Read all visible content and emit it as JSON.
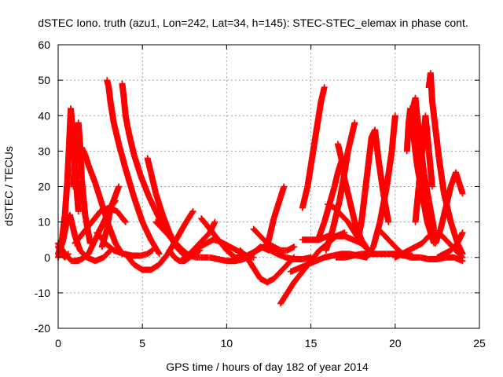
{
  "chart_data": {
    "type": "scatter",
    "title": "dSTEC Iono. truth (azu1, Lon=242, Lat=34, h=145): STEC-STEC_elemax in phase cont.",
    "xlabel": "GPS time / hours of day 182 of year 2014",
    "ylabel": "dSTEC  / TECUs",
    "xlim": [
      0,
      25
    ],
    "ylim": [
      -20,
      60
    ],
    "xticks": [
      0,
      5,
      10,
      15,
      20,
      25
    ],
    "yticks": [
      -20,
      -10,
      0,
      10,
      20,
      30,
      40,
      50,
      60
    ],
    "grid": true,
    "marker": "plus",
    "color": "#ff0000",
    "series": [
      {
        "x": [
          0.0,
          0.2,
          0.4,
          0.55,
          0.65,
          0.75,
          0.85,
          1.0,
          1.2
        ],
        "y": [
          1,
          4,
          12,
          22,
          32,
          42,
          36,
          25,
          13
        ]
      },
      {
        "x": [
          0.9,
          1.0,
          1.1,
          1.2,
          1.3,
          1.4,
          1.6,
          1.9
        ],
        "y": [
          20,
          28,
          34,
          38,
          32,
          22,
          12,
          4
        ]
      },
      {
        "x": [
          0.0,
          0.3,
          0.5,
          0.7,
          0.8,
          1.0,
          1.3,
          1.7,
          2.2,
          2.7,
          3.1
        ],
        "y": [
          0,
          5,
          10,
          12,
          10,
          6,
          2,
          0,
          -1,
          0,
          2
        ]
      },
      {
        "x": [
          1.0,
          1.4,
          1.8,
          2.3,
          2.8,
          3.2,
          3.6
        ],
        "y": [
          -1,
          -0.5,
          1,
          6,
          11,
          15,
          20
        ]
      },
      {
        "x": [
          1.4,
          1.6,
          1.8,
          2.2,
          2.6,
          3.0,
          3.4,
          3.8
        ],
        "y": [
          31,
          29,
          26,
          21,
          15,
          9,
          4,
          1
        ]
      },
      {
        "x": [
          0.0,
          0.2,
          0.4,
          0.6
        ],
        "y": [
          3,
          1,
          0,
          1
        ]
      },
      {
        "x": [
          0.0,
          0.4,
          0.8,
          1.2,
          1.5
        ],
        "y": [
          4,
          1,
          -1,
          -1,
          0
        ]
      },
      {
        "x": [
          2.9,
          3.0,
          3.1,
          3.3,
          3.6,
          4.0,
          4.5,
          5.0,
          5.5,
          6.0
        ],
        "y": [
          50,
          48,
          44,
          38,
          32,
          25,
          17,
          10,
          5,
          1
        ]
      },
      {
        "x": [
          3.8,
          3.9,
          4.0,
          4.2,
          4.5,
          4.9,
          5.4,
          6.0,
          6.6,
          7.2,
          7.6
        ],
        "y": [
          49,
          45,
          40,
          35,
          29,
          23,
          17,
          11,
          6,
          2,
          0
        ]
      },
      {
        "x": [
          2.3,
          2.8,
          3.3,
          3.9,
          4.4,
          4.9,
          5.3,
          5.6
        ],
        "y": [
          7,
          4,
          2,
          1,
          0.5,
          0.5,
          1,
          2
        ]
      },
      {
        "x": [
          2.6,
          2.9,
          3.1,
          3.4
        ],
        "y": [
          3,
          8,
          14,
          16
        ]
      },
      {
        "x": [
          1.0,
          1.5,
          2.0,
          2.5,
          3.0,
          3.5,
          4.0
        ],
        "y": [
          4,
          7,
          10,
          13,
          14,
          13,
          10
        ]
      },
      {
        "x": [
          4.0,
          4.5,
          5.0,
          5.5,
          6.0,
          6.5,
          7.0,
          7.6,
          8.0
        ],
        "y": [
          1,
          -2,
          -3.5,
          -3.5,
          -2,
          1,
          5,
          10,
          13
        ]
      },
      {
        "x": [
          5.3,
          5.5,
          5.8,
          6.2,
          6.6,
          7.0,
          7.4,
          7.7,
          8.0
        ],
        "y": [
          28,
          24,
          18,
          12,
          7,
          3,
          1,
          0,
          1
        ]
      },
      {
        "x": [
          5.8,
          6.2,
          6.6,
          7.0,
          7.4,
          7.8,
          8.2,
          8.6,
          8.9
        ],
        "y": [
          10,
          8,
          6,
          4,
          2,
          0.5,
          0,
          0,
          0
        ]
      },
      {
        "x": [
          7.5,
          7.8,
          8.2,
          8.6,
          9.0,
          9.3
        ],
        "y": [
          0,
          1,
          3,
          5,
          7,
          10
        ]
      },
      {
        "x": [
          8.0,
          8.4,
          8.8,
          9.2,
          9.6,
          10.0,
          10.4,
          10.8,
          11.2,
          11.6
        ],
        "y": [
          2,
          3,
          4,
          5,
          4.5,
          3.5,
          2.5,
          1.5,
          0.5,
          0
        ]
      },
      {
        "x": [
          6.6,
          6.9,
          7.2,
          7.5,
          7.8,
          8.1,
          8.4
        ],
        "y": [
          2,
          0,
          -1,
          -1,
          0,
          1,
          2
        ]
      },
      {
        "x": [
          9.0,
          9.5,
          10.0,
          10.5,
          11.0,
          11.4,
          11.8
        ],
        "y": [
          0,
          -0.5,
          -1,
          -1,
          -0.5,
          0.5,
          2
        ]
      },
      {
        "x": [
          8.5,
          9.0,
          9.5,
          10.0,
          10.5,
          11.0,
          11.5,
          12.0,
          12.5
        ],
        "y": [
          11,
          8,
          5,
          2,
          0,
          0,
          1,
          3,
          2
        ]
      },
      {
        "x": [
          10.5,
          11.0,
          11.4,
          11.8,
          12.2,
          12.6,
          13.0,
          13.5,
          14.0,
          14.5,
          15.0
        ],
        "y": [
          -1,
          0,
          1,
          2,
          3,
          2,
          1,
          0,
          -0.5,
          -0.5,
          0
        ]
      },
      {
        "x": [
          11.6,
          12.0,
          12.4,
          12.8,
          13.2,
          13.6,
          14.0
        ],
        "y": [
          8,
          6,
          4,
          3,
          2,
          2,
          3
        ]
      },
      {
        "x": [
          10.8,
          11.2,
          11.6,
          12.0,
          12.4,
          12.8,
          13.2,
          13.6,
          14.0
        ],
        "y": [
          2,
          0,
          -3,
          -6,
          -7,
          -6,
          -4,
          -2,
          0
        ]
      },
      {
        "x": [
          12.4,
          12.6,
          12.8,
          13.0,
          13.2,
          13.4
        ],
        "y": [
          3,
          7,
          11,
          14,
          17,
          20
        ]
      },
      {
        "x": [
          13.2,
          13.6,
          14.0,
          14.5,
          15.0,
          15.5,
          16.0,
          16.5,
          17.0
        ],
        "y": [
          -13,
          -10,
          -7,
          -4,
          -1,
          2,
          4,
          6,
          7
        ]
      },
      {
        "x": [
          13.8,
          14.3,
          14.8,
          15.3,
          15.8,
          16.3,
          16.8,
          17.3,
          17.8,
          18.3
        ],
        "y": [
          -4,
          -3,
          -2,
          -1,
          0,
          0.5,
          1,
          1,
          0.5,
          0
        ]
      },
      {
        "x": [
          14.5,
          14.8,
          15.0,
          15.2,
          15.4,
          15.6,
          15.8
        ],
        "y": [
          14,
          20,
          26,
          32,
          38,
          44,
          48
        ]
      },
      {
        "x": [
          15.5,
          15.8,
          16.1,
          16.4,
          16.6,
          16.8
        ],
        "y": [
          6,
          10,
          15,
          20,
          24,
          27
        ]
      },
      {
        "x": [
          14.5,
          15.0,
          15.5,
          16.0,
          16.5,
          17.0,
          17.5,
          18.0
        ],
        "y": [
          5,
          5,
          5,
          6,
          6,
          6,
          5,
          4
        ]
      },
      {
        "x": [
          15.9,
          16.3,
          16.7,
          17.0,
          17.2,
          17.4,
          17.6
        ],
        "y": [
          2,
          8,
          16,
          24,
          30,
          34,
          38
        ]
      },
      {
        "x": [
          16.6,
          16.8,
          17.0,
          17.3,
          17.6,
          18.0,
          18.4,
          18.8
        ],
        "y": [
          32,
          28,
          22,
          16,
          10,
          5,
          2,
          1
        ]
      },
      {
        "x": [
          16.0,
          16.4,
          16.8,
          17.2,
          17.6,
          18.0,
          18.4
        ],
        "y": [
          15,
          14,
          12,
          10,
          7,
          4,
          2
        ]
      },
      {
        "x": [
          16.5,
          17.0,
          17.5,
          18.0,
          18.5,
          19.0,
          19.5,
          20.0,
          20.5,
          21.0
        ],
        "y": [
          0,
          0,
          0.5,
          1,
          1,
          1,
          1,
          1,
          0.5,
          0.5
        ]
      },
      {
        "x": [
          17.8,
          18.0,
          18.2,
          18.4,
          18.6,
          18.8,
          19.0,
          19.3,
          19.6
        ],
        "y": [
          5,
          10,
          18,
          26,
          34,
          36,
          28,
          18,
          10
        ]
      },
      {
        "x": [
          18.3,
          18.7,
          19.1,
          19.5,
          19.8,
          20.0
        ],
        "y": [
          0,
          3,
          10,
          20,
          30,
          40
        ]
      },
      {
        "x": [
          19.0,
          19.4,
          19.8,
          20.2,
          20.6,
          20.9,
          21.2
        ],
        "y": [
          8,
          6,
          4,
          2,
          0.5,
          0,
          0
        ]
      },
      {
        "x": [
          20.7,
          20.8,
          20.9,
          21.0,
          21.1,
          21.3,
          21.6,
          21.9,
          22.3
        ],
        "y": [
          30,
          38,
          42,
          40,
          34,
          26,
          18,
          10,
          4
        ]
      },
      {
        "x": [
          21.0,
          21.1,
          21.2,
          21.3,
          21.5,
          21.7,
          22.0,
          22.3
        ],
        "y": [
          38,
          43,
          45,
          40,
          32,
          24,
          16,
          8
        ]
      },
      {
        "x": [
          22.0,
          22.1,
          22.2,
          22.4,
          22.6,
          22.9,
          23.3,
          23.7,
          24.0
        ],
        "y": [
          48,
          52,
          44,
          36,
          28,
          18,
          10,
          4,
          1
        ]
      },
      {
        "x": [
          21.2,
          21.4,
          21.6,
          21.8,
          22.0,
          22.2
        ],
        "y": [
          10,
          20,
          30,
          40,
          30,
          20
        ]
      },
      {
        "x": [
          22.4,
          22.7,
          23.0,
          23.3,
          23.6,
          24.0
        ],
        "y": [
          4,
          8,
          14,
          20,
          24,
          18
        ]
      },
      {
        "x": [
          22.5,
          22.9,
          23.3,
          23.7,
          24.0
        ],
        "y": [
          0,
          1,
          2,
          4,
          7
        ]
      },
      {
        "x": [
          20.0,
          20.4,
          20.8,
          21.2,
          21.6,
          22.0,
          22.4,
          22.8,
          23.2,
          23.6,
          24.0
        ],
        "y": [
          0,
          1,
          2,
          3,
          4,
          6,
          7,
          6,
          4,
          2,
          0
        ]
      },
      {
        "x": [
          21.0,
          21.5,
          22.0,
          22.5,
          23.0,
          23.5,
          24.0
        ],
        "y": [
          0,
          0,
          -0.5,
          -0.5,
          0,
          0,
          -1
        ]
      }
    ]
  }
}
